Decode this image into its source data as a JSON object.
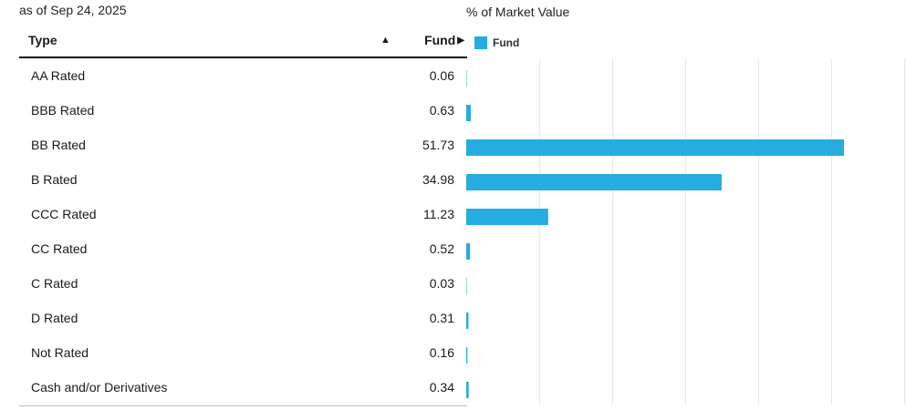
{
  "as_of": "as of Sep 24, 2025",
  "table": {
    "col_type": "Type",
    "col_fund": "Fund"
  },
  "chart_data": {
    "type": "bar",
    "orientation": "horizontal",
    "title": "% of Market Value",
    "categories": [
      "AA Rated",
      "BBB Rated",
      "BB Rated",
      "B Rated",
      "CCC Rated",
      "CC Rated",
      "C Rated",
      "D Rated",
      "Not Rated",
      "Cash and/or Derivatives"
    ],
    "series": [
      {
        "name": "Fund",
        "color": "#25ade1",
        "values": [
          0.06,
          0.63,
          51.73,
          34.98,
          11.23,
          0.52,
          0.03,
          0.31,
          0.16,
          0.34
        ],
        "labels": [
          "0.06",
          "0.63",
          "51.73",
          "34.98",
          "11.23",
          "0.52",
          "0.03",
          "0.31",
          "0.16",
          "0.34"
        ]
      }
    ],
    "xlim": [
      0,
      60
    ],
    "grid": true,
    "legend": "top-left"
  }
}
